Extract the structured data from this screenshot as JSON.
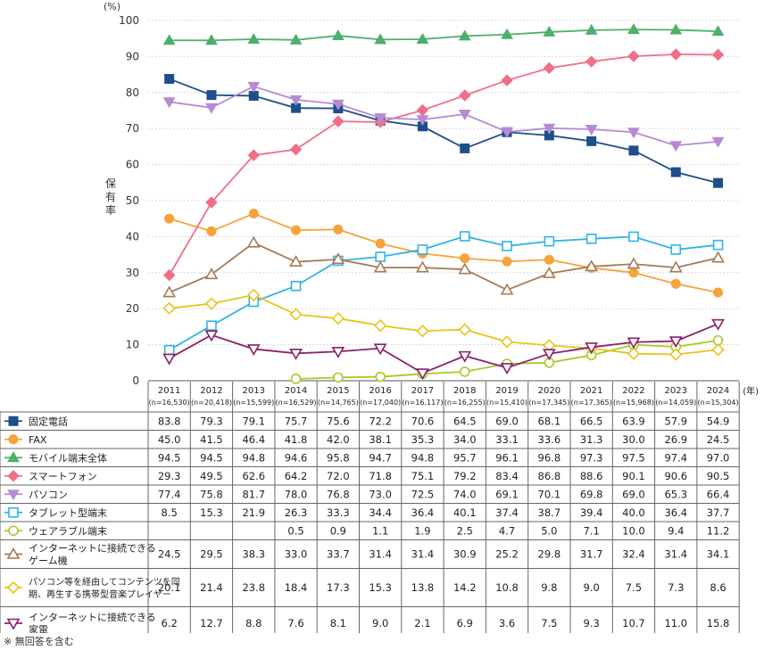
{
  "chart_data": {
    "type": "line",
    "unit": "(%)",
    "ylabel": "保有率",
    "xunit": "(年)",
    "ylim": [
      0,
      100
    ],
    "yticks": [
      0,
      10,
      20,
      30,
      40,
      50,
      60,
      70,
      80,
      90,
      100
    ],
    "grid": true,
    "legend": "table-below",
    "x": [
      "2011",
      "2012",
      "2013",
      "2014",
      "2015",
      "2016",
      "2017",
      "2018",
      "2019",
      "2020",
      "2021",
      "2022",
      "2023",
      "2024"
    ],
    "n": [
      "(n=16,530)",
      "(n=20,418)",
      "(n=15,599)",
      "(n=16,529)",
      "(n=14,765)",
      "(n=17,040)",
      "(n=16,117)",
      "(n=16,255)",
      "(n=15,410)",
      "(n=17,345)",
      "(n=17,365)",
      "(n=15,968)",
      "(n=14,059)",
      "(n=15,304)"
    ],
    "series": [
      {
        "name": "固定電話",
        "color": "#1f4e8c",
        "marker": "square-filled",
        "values": [
          83.8,
          79.3,
          79.1,
          75.7,
          75.6,
          72.2,
          70.6,
          64.5,
          69.0,
          68.1,
          66.5,
          63.9,
          57.9,
          54.9
        ]
      },
      {
        "name": "FAX",
        "color": "#f5a33a",
        "marker": "circle-filled",
        "values": [
          45.0,
          41.5,
          46.4,
          41.8,
          42.0,
          38.1,
          35.3,
          34.0,
          33.1,
          33.6,
          31.3,
          30.0,
          26.9,
          24.5
        ]
      },
      {
        "name": "モバイル端末全体",
        "color": "#4caf6a",
        "marker": "triangle-up-filled",
        "values": [
          94.5,
          94.5,
          94.8,
          94.6,
          95.8,
          94.7,
          94.8,
          95.7,
          96.1,
          96.8,
          97.3,
          97.5,
          97.4,
          97.0
        ]
      },
      {
        "name": "スマートフォン",
        "color": "#ef6f86",
        "marker": "diamond-filled",
        "values": [
          29.3,
          49.5,
          62.6,
          64.2,
          72.0,
          71.8,
          75.1,
          79.2,
          83.4,
          86.8,
          88.6,
          90.1,
          90.6,
          90.5
        ]
      },
      {
        "name": "パソコン",
        "color": "#b58ad3",
        "marker": "triangle-down-filled",
        "values": [
          77.4,
          75.8,
          81.7,
          78.0,
          76.8,
          73.0,
          72.5,
          74.0,
          69.1,
          70.1,
          69.8,
          69.0,
          65.3,
          66.4
        ]
      },
      {
        "name": "タブレット型端末",
        "color": "#2fb3e6",
        "marker": "square-open",
        "values": [
          8.5,
          15.3,
          21.9,
          26.3,
          33.3,
          34.4,
          36.4,
          40.1,
          37.4,
          38.7,
          39.4,
          40.0,
          36.4,
          37.7
        ]
      },
      {
        "name": "ウェアラブル端末",
        "color": "#a9c928",
        "marker": "circle-open",
        "values": [
          null,
          null,
          null,
          0.5,
          0.9,
          1.1,
          1.9,
          2.5,
          4.7,
          5.0,
          7.1,
          10.0,
          9.4,
          11.2
        ]
      },
      {
        "name": "インターネットに接続できるゲーム機",
        "line1": "インターネットに接続できる",
        "line2": "ゲーム機",
        "color": "#a87954",
        "marker": "triangle-up-open",
        "values": [
          24.5,
          29.5,
          38.3,
          33.0,
          33.7,
          31.4,
          31.4,
          30.9,
          25.2,
          29.8,
          31.7,
          32.4,
          31.4,
          34.1
        ]
      },
      {
        "name": "パソコン等を経由してコンテンツを同期、再生する携帯型音楽プレイヤー",
        "line1": "パソコン等を経由してコンテンツを同",
        "line2": "期、再生する携帯型音楽プレイヤー",
        "color": "#e8c41a",
        "marker": "diamond-open",
        "values": [
          20.1,
          21.4,
          23.8,
          18.4,
          17.3,
          15.3,
          13.8,
          14.2,
          10.8,
          9.8,
          9.0,
          7.5,
          7.3,
          8.6
        ]
      },
      {
        "name": "インターネットに接続できる家電",
        "line1": "インターネットに接続できる",
        "line2": "家電",
        "color": "#8c1f6b",
        "marker": "triangle-down-open",
        "values": [
          6.2,
          12.7,
          8.8,
          7.6,
          8.1,
          9.0,
          2.1,
          6.9,
          3.6,
          7.5,
          9.3,
          10.7,
          11.0,
          15.8
        ]
      }
    ]
  },
  "note": "※ 無回答を含む"
}
